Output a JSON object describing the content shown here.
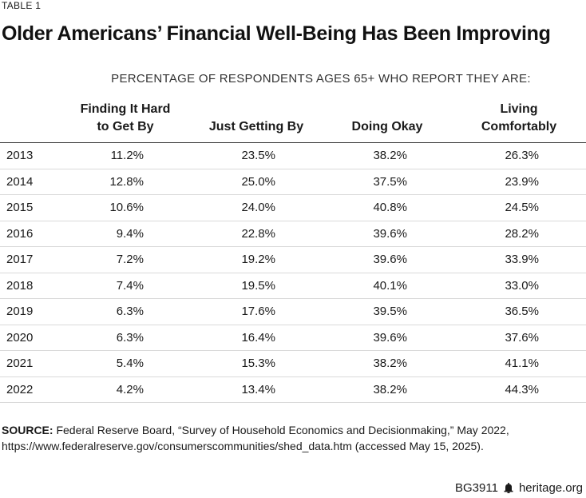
{
  "table_label": "TABLE 1",
  "title": "Older Americans’ Financial Well-Being Has Been Improving",
  "subtitle": "PERCENTAGE OF RESPONDENTS AGES 65+ WHO REPORT THEY ARE:",
  "columns": {
    "c1_line1": "Finding It Hard",
    "c1_line2": "to Get By",
    "c2": "Just Getting By",
    "c3": "Doing Okay",
    "c4_line1": "Living",
    "c4_line2": "Comfortably"
  },
  "rows": [
    {
      "year": "2013",
      "hard": "11.2%",
      "just": "23.5%",
      "okay": "38.2%",
      "comfortable": "26.3%"
    },
    {
      "year": "2014",
      "hard": "12.8%",
      "just": "25.0%",
      "okay": "37.5%",
      "comfortable": "23.9%"
    },
    {
      "year": "2015",
      "hard": "10.6%",
      "just": "24.0%",
      "okay": "40.8%",
      "comfortable": "24.5%"
    },
    {
      "year": "2016",
      "hard": "9.4%",
      "just": "22.8%",
      "okay": "39.6%",
      "comfortable": "28.2%"
    },
    {
      "year": "2017",
      "hard": "7.2%",
      "just": "19.2%",
      "okay": "39.6%",
      "comfortable": "33.9%"
    },
    {
      "year": "2018",
      "hard": "7.4%",
      "just": "19.5%",
      "okay": "40.1%",
      "comfortable": "33.0%"
    },
    {
      "year": "2019",
      "hard": "6.3%",
      "just": "17.6%",
      "okay": "39.5%",
      "comfortable": "36.5%"
    },
    {
      "year": "2020",
      "hard": "6.3%",
      "just": "16.4%",
      "okay": "39.6%",
      "comfortable": "37.6%"
    },
    {
      "year": "2021",
      "hard": "5.4%",
      "just": "15.3%",
      "okay": "38.2%",
      "comfortable": "41.1%"
    },
    {
      "year": "2022",
      "hard": "4.2%",
      "just": "13.4%",
      "okay": "38.2%",
      "comfortable": "44.3%"
    }
  ],
  "source": {
    "label": "SOURCE:",
    "text": " Federal Reserve Board, “Survey of Household Economics and Decisionmaking,” May 2022, https://www.federalreserve.gov/consumerscommunities/shed_data.htm (accessed May 15, 2025)."
  },
  "footer": {
    "code": "BG3911",
    "icon": "bell-icon",
    "site": "heritage.org"
  }
}
